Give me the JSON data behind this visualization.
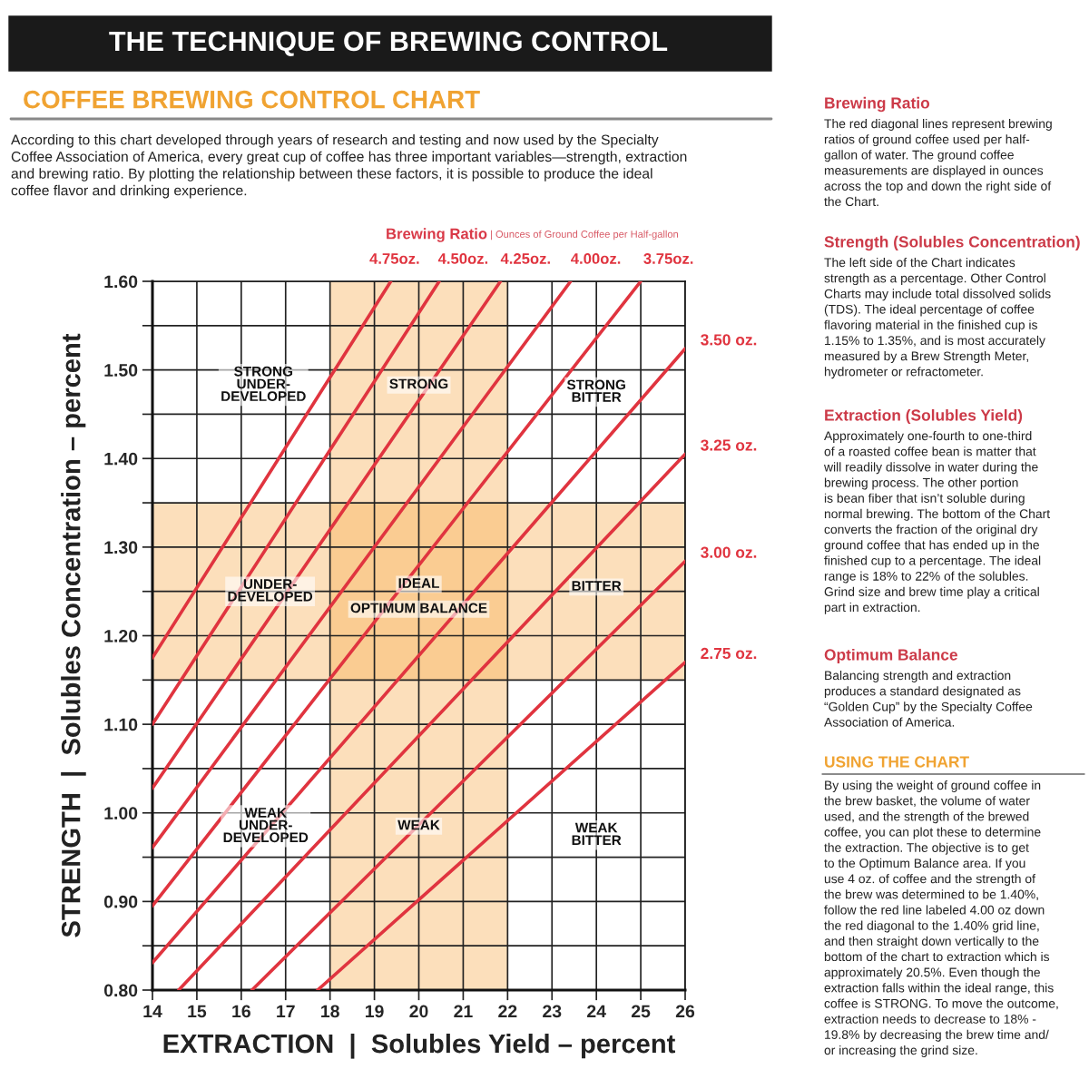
{
  "chart_data": {
    "type": "line",
    "title": "THE TECHNIQUE OF BREWING CONTROL",
    "subtitle": "COFFEE BREWING CONTROL CHART",
    "legend_title": "Brewing Ratio",
    "xlabel": "EXTRACTION  |  Solubles Yield – percent",
    "ylabel": "STRENGTH  |  Solubles Concentration – percent",
    "xlim": [
      14,
      26
    ],
    "xticks": [
      14,
      15,
      16,
      17,
      18,
      19,
      20,
      21,
      22,
      23,
      24,
      25,
      26
    ],
    "ylim": [
      0.8,
      1.6
    ],
    "yticks": [
      {
        "value": 0.8,
        "label": "0.80"
      },
      {
        "value": 0.85,
        "label": null
      },
      {
        "value": 0.9,
        "label": "0.90"
      },
      {
        "value": 0.95,
        "label": null
      },
      {
        "value": 1.0,
        "label": "1.00"
      },
      {
        "value": 1.05,
        "label": null
      },
      {
        "value": 1.1,
        "label": "1.10"
      },
      {
        "value": 1.15,
        "label": null
      },
      {
        "value": 1.2,
        "label": "1.20"
      },
      {
        "value": 1.25,
        "label": null
      },
      {
        "value": 1.3,
        "label": "1.30"
      },
      {
        "value": 1.35,
        "label": null
      },
      {
        "value": 1.4,
        "label": "1.40"
      },
      {
        "value": 1.45,
        "label": null
      },
      {
        "value": 1.5,
        "label": "1.50"
      },
      {
        "value": 1.55,
        "label": null
      },
      {
        "value": 1.6,
        "label": "1.60"
      }
    ],
    "grid": true,
    "line_style": "solid",
    "bands": [
      {
        "axis": "x",
        "from": 18,
        "to": 22,
        "color": "#f7b055"
      },
      {
        "axis": "y",
        "from": 1.15,
        "to": 1.35,
        "color": "#f7b055"
      }
    ],
    "series": [
      {
        "name": "4.75oz.",
        "color": "#e0343f",
        "x": [
          14,
          19.37
        ],
        "values": [
          1.175,
          1.6
        ]
      },
      {
        "name": "4.50oz.",
        "color": "#e0343f",
        "x": [
          14,
          20.46
        ],
        "values": [
          1.1,
          1.6
        ]
      },
      {
        "name": "4.25oz.",
        "color": "#e0343f",
        "x": [
          14,
          21.84
        ],
        "values": [
          1.028,
          1.6
        ]
      },
      {
        "name": "4.00oz.",
        "color": "#e0343f",
        "x": [
          14,
          23.42
        ],
        "values": [
          0.961,
          1.6
        ]
      },
      {
        "name": "3.75oz.",
        "color": "#e0343f",
        "x": [
          14,
          25.0
        ],
        "values": [
          0.895,
          1.6
        ]
      },
      {
        "name": "3.50 oz.",
        "color": "#e0343f",
        "x": [
          14,
          26
        ],
        "values": [
          0.831,
          1.524
        ]
      },
      {
        "name": "3.25 oz.",
        "color": "#e0343f",
        "x": [
          14.59,
          26
        ],
        "values": [
          0.8,
          1.405
        ]
      },
      {
        "name": "3.00 oz.",
        "color": "#e0343f",
        "x": [
          16.24,
          26
        ],
        "values": [
          0.8,
          1.284
        ]
      },
      {
        "name": "2.75 oz.",
        "color": "#e0343f",
        "x": [
          17.72,
          26
        ],
        "values": [
          0.8,
          1.17
        ]
      }
    ],
    "annotations": [
      "According to this chart developed through years of research and testing and now used by the Specialty\nCoffee Association of America, every great cup of coffee has three important variables—strength, extraction\nand brewing ratio. By plotting the relationship between these factors, it is possible to produce the ideal\ncoffee flavor and drinking experience.",
      "| Ounces of Ground Coffee per Half-gallon",
      "Brewing Ratio",
      "The red diagonal lines represent brewing\nratios of ground coffee used per half-\ngallon of water. The ground coffee\nmeasurements are displayed in ounces\nacross the top and down the right side of\nthe Chart.",
      "Strength (Solubles Concentration)",
      "The left side of the Chart indicates\nstrength as a percentage. Other Control\nCharts may include total dissolved solids\n(TDS). The ideal percentage of coffee\nflavoring material in the finished cup is\n1.15% to 1.35%, and is most accurately\nmeasured by a Brew Strength Meter,\nhydrometer or refractometer.",
      "Extraction (Solubles Yield)",
      "Approximately one-fourth to one-third\nof a roasted coffee bean is matter that\nwill readily dissolve in water during the\nbrewing process. The other portion\nis bean fiber that isn’t soluble during\nnormal brewing. The bottom of the Chart\nconverts the fraction of the original dry\nground coffee that has ended up in the\nfinished cup to a percentage. The ideal\nrange is 18% to 22% of the solubles.\nGrind size and brew time play a critical\npart in extraction.",
      "Optimum Balance",
      "Balancing strength and extraction\nproduces a standard designated as\n“Golden Cup” by the Specialty Coffee\nAssociation of America.",
      "USING THE CHART",
      "By using the weight of ground coffee in\nthe brew basket, the volume of water\nused, and the strength of the brewed\ncoffee, you can plot these to determine\nthe extraction. The objective is to get\nto the Optimum Balance area. If you\nuse 4 oz. of coffee and the strength of\nthe brew was determined to be 1.40%,\nfollow the red line labeled 4.00 oz down\nthe red diagonal to the 1.40% grid line,\nand then straight down vertically to the\nbottom of the chart to extraction which is\napproximately 20.5%. Even though the\nextraction falls within the ideal range, this\ncoffee is STRONG. To move the outcome,\nextraction needs to decrease to 18% -\n19.8% by decreasing the brew time and/\nor increasing the grind size.",
      "STRONG\nUNDER-\nDEVELOPED",
      "STRONG",
      "STRONG\nBITTER",
      "UNDER-\nDEVELOPED",
      "IDEAL",
      "OPTIMUM BALANCE",
      "BITTER",
      "WEAK\nUNDER-\nDEVELOPED",
      "WEAK",
      "WEAK\nBITTER"
    ]
  }
}
